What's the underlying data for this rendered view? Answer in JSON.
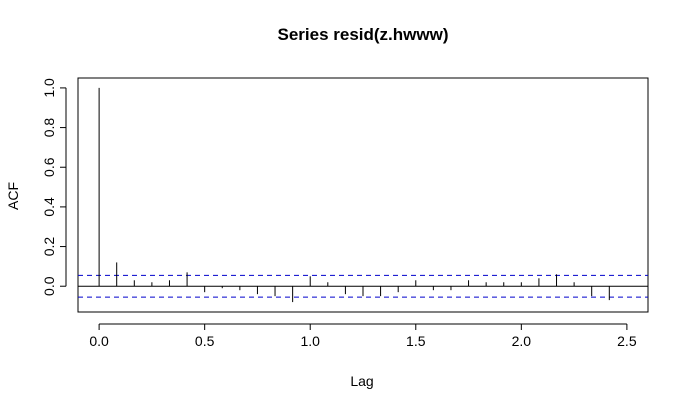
{
  "chart_data": {
    "type": "bar",
    "title": "Series  resid(z.hwww)",
    "xlabel": "Lag",
    "ylabel": "ACF",
    "xlim": [
      -0.1,
      2.6
    ],
    "ylim": [
      -0.13,
      1.05
    ],
    "xticks": [
      "0.0",
      "0.5",
      "1.0",
      "1.5",
      "2.0",
      "2.5"
    ],
    "yticks": [
      "0.0",
      "0.2",
      "0.4",
      "0.6",
      "0.8",
      "1.0"
    ],
    "confidence_band": 0.055,
    "grid": false,
    "colors": {
      "spikes": "#000000",
      "confidence": "#0000cc",
      "zero_line": "#000000"
    },
    "lags": [
      0,
      0.0833,
      0.1667,
      0.25,
      0.3333,
      0.4167,
      0.5,
      0.5833,
      0.6667,
      0.75,
      0.8333,
      0.9167,
      1.0,
      1.0833,
      1.1667,
      1.25,
      1.3333,
      1.4167,
      1.5,
      1.5833,
      1.6667,
      1.75,
      1.8333,
      1.9167,
      2.0,
      2.0833,
      2.1667,
      2.25,
      2.3333,
      2.4167
    ],
    "values": [
      1.0,
      0.12,
      0.03,
      0.02,
      0.03,
      0.07,
      -0.03,
      -0.01,
      -0.02,
      -0.04,
      -0.05,
      -0.08,
      0.05,
      0.02,
      -0.04,
      -0.05,
      -0.05,
      -0.03,
      0.03,
      -0.02,
      -0.02,
      0.03,
      0.02,
      0.02,
      0.02,
      0.04,
      0.06,
      0.02,
      -0.05,
      -0.07
    ]
  }
}
